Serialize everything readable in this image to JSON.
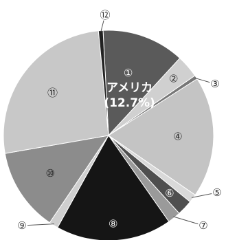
{
  "chart_data": {
    "type": "pie",
    "title": "",
    "start_angle_deg": -3,
    "direction": "clockwise",
    "slices": [
      {
        "label": "①",
        "name": "アメリカ",
        "value_text": "(12.7%)",
        "value": 12.7,
        "color": "#5a5a5a",
        "text_color": "#ffffff"
      },
      {
        "label": "②",
        "value": 3.5,
        "color": "#d0d0d0",
        "text_color": "#333333"
      },
      {
        "label": "③",
        "value": 0.6,
        "color": "#777777",
        "text_color": "#333333"
      },
      {
        "label": "④",
        "value": 18.6,
        "color": "#c4c4c4",
        "text_color": "#333333"
      },
      {
        "label": "⑤",
        "value": 1.3,
        "color": "#d9d9d9",
        "text_color": "#333333"
      },
      {
        "label": "⑥",
        "value": 2.4,
        "color": "#4f4f4f",
        "text_color": "#ffffff"
      },
      {
        "label": "⑦",
        "value": 2.0,
        "color": "#9a9a9a",
        "text_color": "#333333"
      },
      {
        "label": "⑧",
        "value": 17.8,
        "color": "#151515",
        "text_color": "#ffffff"
      },
      {
        "label": "⑨",
        "value": 1.4,
        "color": "#cfcfcf",
        "text_color": "#333333"
      },
      {
        "label": "⑩",
        "value": 12.8,
        "color": "#8c8c8c",
        "text_color": "#222222"
      },
      {
        "label": "⑪",
        "value": 26.2,
        "color": "#c8c8c8",
        "text_color": "#222222"
      },
      {
        "label": "⑫",
        "value": 0.7,
        "color": "#222222",
        "text_color": "#333333"
      }
    ]
  }
}
